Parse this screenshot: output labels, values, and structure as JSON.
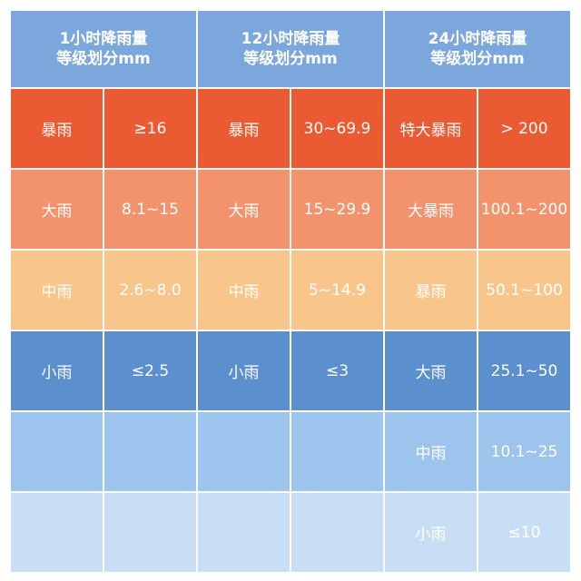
{
  "headers": [
    {
      "line1": "1小时降雨量",
      "line2": "等级划分mm"
    },
    {
      "line1": "12小时降雨量",
      "line2": "等级划分mm"
    },
    {
      "line1": "24小时降雨量",
      "line2": "等级划分mm"
    }
  ],
  "rows": [
    [
      "暴雨",
      "≥16",
      "暴雨",
      "30~69.9",
      "特大暴雨",
      "> 200"
    ],
    [
      "大雨",
      "8.1~15",
      "大雨",
      "15~29.9",
      "大暴雨",
      "100.1~200"
    ],
    [
      "中雨",
      "2.6~8.0",
      "中雨",
      "5~14.9",
      "暴雨",
      "50.1~100"
    ],
    [
      "小雨",
      "≤2.5",
      "小雨",
      "≤3",
      "大雨",
      "25.1~50"
    ],
    [
      "",
      "",
      "",
      "",
      "中雨",
      "10.1~25"
    ],
    [
      "",
      "",
      "",
      "",
      "小雨",
      "≤10"
    ]
  ],
  "colors": {
    "header": "#7ca7dd",
    "row1": "#ea5b33",
    "row2": "#f2936e",
    "row3": "#f8c68b",
    "row4": "#5b8fce",
    "row5": "#9cc4ec",
    "row6": "#c7def5"
  }
}
